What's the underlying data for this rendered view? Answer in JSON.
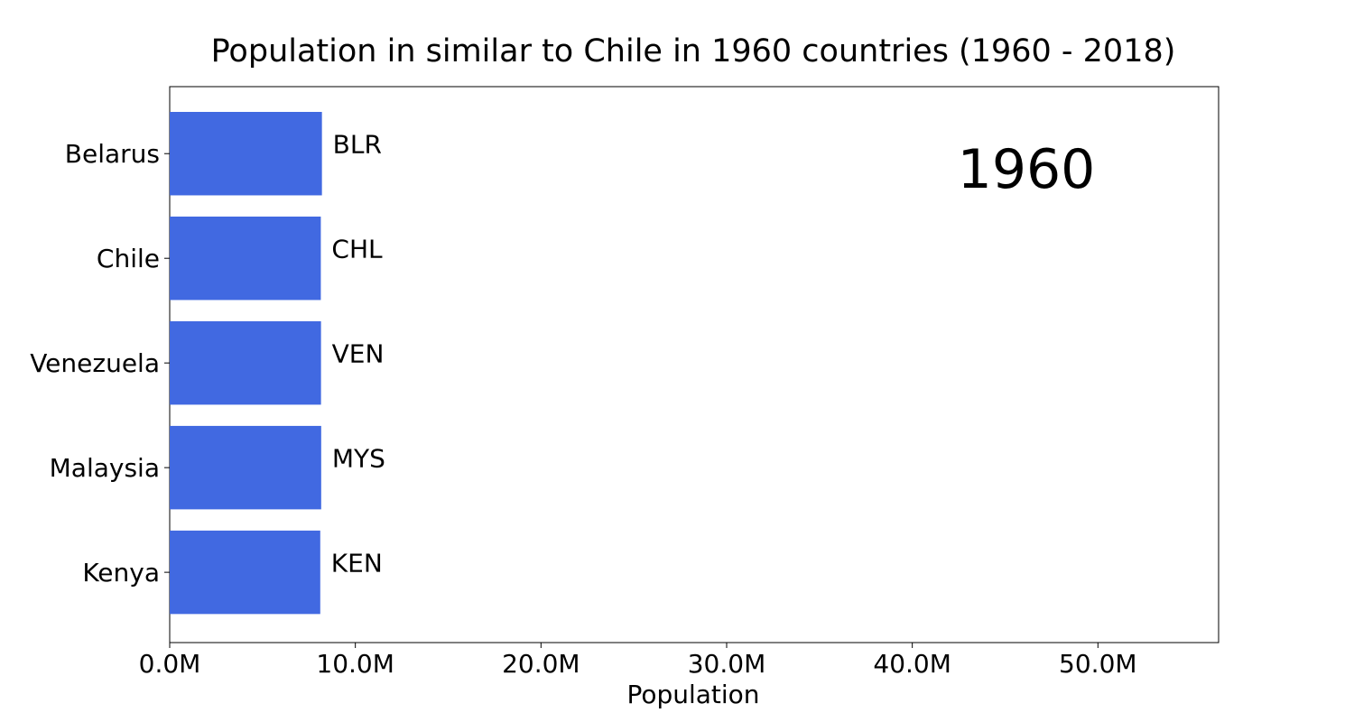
{
  "chart_data": {
    "type": "bar",
    "orientation": "horizontal",
    "title": "Population in similar to Chile in 1960 countries (1960 - 2018)",
    "xlabel": "Population",
    "ylabel": "",
    "year_label": "1960",
    "xlim": [
      0,
      56500000
    ],
    "x_ticks": [
      {
        "value": 0,
        "label": "0.0M"
      },
      {
        "value": 10000000,
        "label": "10.0M"
      },
      {
        "value": 20000000,
        "label": "20.0M"
      },
      {
        "value": 30000000,
        "label": "30.0M"
      },
      {
        "value": 40000000,
        "label": "40.0M"
      },
      {
        "value": 50000000,
        "label": "50.0M"
      }
    ],
    "bar_color": "#4169e1",
    "grid": false,
    "bars": [
      {
        "category": "Belarus",
        "code": "BLR",
        "value": 8200000
      },
      {
        "category": "Chile",
        "code": "CHL",
        "value": 8140000
      },
      {
        "category": "Venezuela",
        "code": "VEN",
        "value": 8150000
      },
      {
        "category": "Malaysia",
        "code": "MYS",
        "value": 8160000
      },
      {
        "category": "Kenya",
        "code": "KEN",
        "value": 8110000
      }
    ]
  }
}
